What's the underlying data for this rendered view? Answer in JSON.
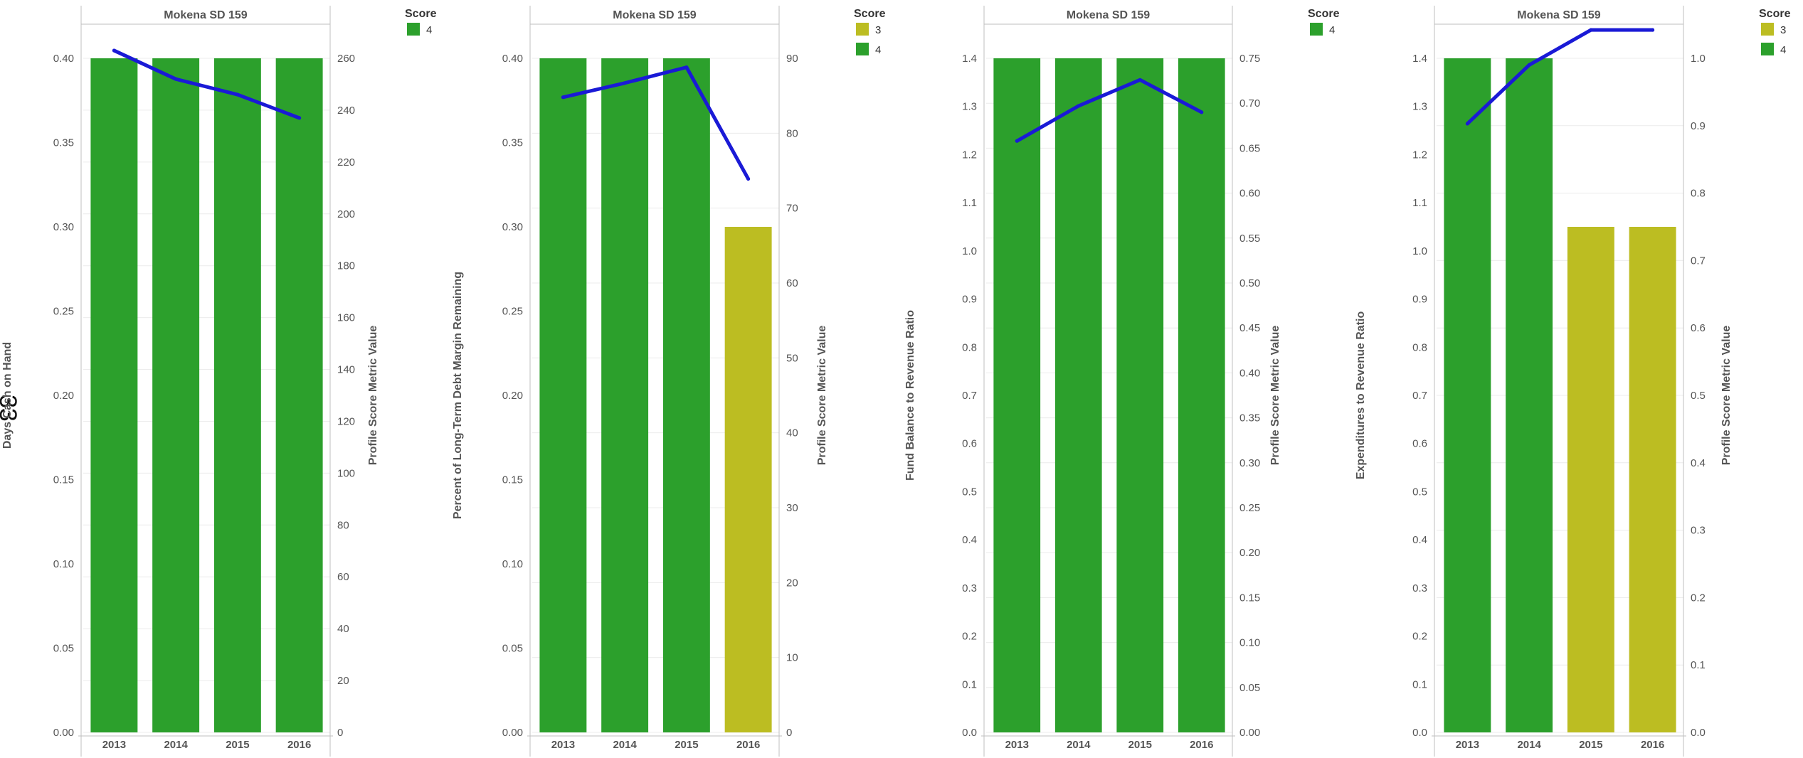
{
  "page_number": "33",
  "chart_data": [
    {
      "type": "bar",
      "title": "Mokena SD 159",
      "categories": [
        "2013",
        "2014",
        "2015",
        "2016"
      ],
      "bar_values": [
        0.4,
        0.4,
        0.4,
        0.4
      ],
      "bar_scores": [
        "4",
        "4",
        "4",
        "4"
      ],
      "ylabel": "Days Cash on Hand",
      "ylim": [
        0,
        0.4
      ],
      "yticks": [
        "0.00",
        "0.05",
        "0.10",
        "0.15",
        "0.20",
        "0.25",
        "0.30",
        "0.35",
        "0.40"
      ],
      "y2label": "Profile Score Metric Value",
      "y2lim": [
        0,
        260
      ],
      "y2ticks": [
        "0",
        "20",
        "40",
        "60",
        "80",
        "100",
        "120",
        "140",
        "160",
        "180",
        "200",
        "220",
        "240",
        "260"
      ],
      "line_values": [
        263,
        252,
        246,
        237
      ],
      "legend_title": "Score",
      "legend": [
        {
          "label": "4",
          "color": "#2ca02c"
        }
      ]
    },
    {
      "type": "bar",
      "title": "Mokena SD 159",
      "categories": [
        "2013",
        "2014",
        "2015",
        "2016"
      ],
      "bar_values": [
        0.4,
        0.4,
        0.4,
        0.3
      ],
      "bar_scores": [
        "4",
        "4",
        "4",
        "3"
      ],
      "ylabel": "Percent of Long-Term Debt Margin Remaining",
      "ylim": [
        0,
        0.4
      ],
      "yticks": [
        "0.00",
        "0.05",
        "0.10",
        "0.15",
        "0.20",
        "0.25",
        "0.30",
        "0.35",
        "0.40"
      ],
      "y2label": "Profile Score Metric Value",
      "y2lim": [
        0,
        90
      ],
      "y2ticks": [
        "0",
        "10",
        "20",
        "30",
        "40",
        "50",
        "60",
        "70",
        "80",
        "90"
      ],
      "line_values": [
        84.8,
        86.7,
        88.8,
        73.9
      ],
      "legend_title": "Score",
      "legend": [
        {
          "label": "3",
          "color": "#bcbd22"
        },
        {
          "label": "4",
          "color": "#2ca02c"
        }
      ]
    },
    {
      "type": "bar",
      "title": "Mokena SD 159",
      "categories": [
        "2013",
        "2014",
        "2015",
        "2016"
      ],
      "bar_values": [
        1.4,
        1.4,
        1.4,
        1.4
      ],
      "bar_scores": [
        "4",
        "4",
        "4",
        "4"
      ],
      "ylabel": "Fund Balance to Revenue Ratio",
      "ylim": [
        0,
        1.4
      ],
      "yticks": [
        "0.0",
        "0.1",
        "0.2",
        "0.3",
        "0.4",
        "0.5",
        "0.6",
        "0.7",
        "0.8",
        "0.9",
        "1.0",
        "1.1",
        "1.2",
        "1.3",
        "1.4"
      ],
      "y2label": "Profile Score Metric Value",
      "y2lim": [
        0,
        0.75
      ],
      "y2ticks": [
        "0.00",
        "0.05",
        "0.10",
        "0.15",
        "0.20",
        "0.25",
        "0.30",
        "0.35",
        "0.40",
        "0.45",
        "0.50",
        "0.55",
        "0.60",
        "0.65",
        "0.70",
        "0.75"
      ],
      "line_values": [
        0.658,
        0.697,
        0.726,
        0.69
      ],
      "legend_title": "Score",
      "legend": [
        {
          "label": "4",
          "color": "#2ca02c"
        }
      ]
    },
    {
      "type": "bar",
      "title": "Mokena SD 159",
      "categories": [
        "2013",
        "2014",
        "2015",
        "2016"
      ],
      "bar_values": [
        1.4,
        1.4,
        1.05,
        1.05
      ],
      "bar_scores": [
        "4",
        "4",
        "3",
        "3"
      ],
      "ylabel": "Expenditures to Revenue Ratio",
      "ylim": [
        0,
        1.4
      ],
      "yticks": [
        "0.0",
        "0.1",
        "0.2",
        "0.3",
        "0.4",
        "0.5",
        "0.6",
        "0.7",
        "0.8",
        "0.9",
        "1.0",
        "1.1",
        "1.2",
        "1.3",
        "1.4"
      ],
      "y2label": "Profile Score Metric Value",
      "y2lim": [
        0,
        1.0
      ],
      "y2ticks": [
        "0.0",
        "0.1",
        "0.2",
        "0.3",
        "0.4",
        "0.5",
        "0.6",
        "0.7",
        "0.8",
        "0.9",
        "1.0"
      ],
      "line_values": [
        0.903,
        0.99,
        1.042,
        1.042
      ],
      "legend_title": "Score",
      "legend": [
        {
          "label": "3",
          "color": "#bcbd22"
        },
        {
          "label": "4",
          "color": "#2ca02c"
        }
      ]
    }
  ],
  "colors": {
    "score_4": "#2ca02c",
    "score_3": "#bcbd22",
    "line": "#1a1ad6",
    "axis": "#bfbfbf",
    "grid": "#ececec"
  }
}
